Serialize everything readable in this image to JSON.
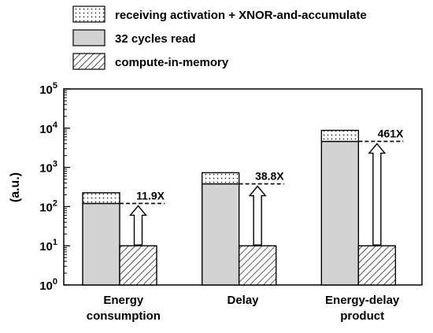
{
  "chart_data": {
    "type": "bar",
    "scale": "log",
    "ylabel": "(a.u.)",
    "ylim": [
      1,
      100000
    ],
    "y_ticks": [
      {
        "value": 1,
        "base": "10",
        "exp": "0"
      },
      {
        "value": 10,
        "base": "10",
        "exp": "1"
      },
      {
        "value": 100,
        "base": "10",
        "exp": "2"
      },
      {
        "value": 1000,
        "base": "10",
        "exp": "3"
      },
      {
        "value": 10000,
        "base": "10",
        "exp": "4"
      },
      {
        "value": 100000,
        "base": "10",
        "exp": "5"
      }
    ],
    "categories": [
      [
        "Energy",
        "consumption"
      ],
      [
        "Delay"
      ],
      [
        "Energy-delay",
        "product"
      ]
    ],
    "legend": [
      {
        "label": "receiving activation + XNOR-and-accumulate",
        "pattern": "dots"
      },
      {
        "label": "32 cycles read",
        "pattern": "gray"
      },
      {
        "label": "compute-in-memory",
        "pattern": "hatch"
      }
    ],
    "series": {
      "conventional_read": [
        120,
        380,
        4600
      ],
      "conventional_total": [
        225,
        730,
        8800
      ],
      "compute_in_memory": [
        10,
        10,
        10
      ]
    },
    "improvement_labels": [
      "11.9X",
      "38.8X",
      "461X"
    ],
    "colors": {
      "gray": "#d3d3d3",
      "edge": "#000000",
      "background": "#ffffff"
    }
  }
}
